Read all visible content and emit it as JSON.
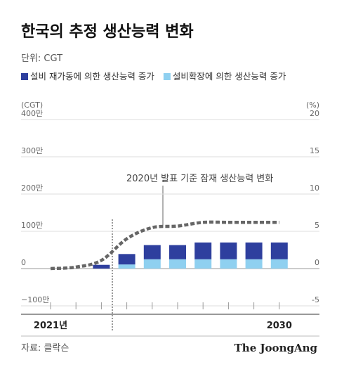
{
  "chart_data": {
    "type": "bar",
    "title": "한국의 추정 생산능력 변화",
    "subtitle": "단위: CGT",
    "y_label": "(CGT)",
    "y2_label": "(%)",
    "annotation": "2020년 발표 기준 잠재 생산능력 변화",
    "source": "자료: 클락슨",
    "credit": "The JoongAng",
    "categories": [
      "2021년",
      null,
      null,
      null,
      null,
      null,
      null,
      null,
      null,
      "2030"
    ],
    "series": [
      {
        "name": "설비 재가동에 의한 생산능력 증가",
        "color": "#2e3f9e",
        "values": [
          null,
          null,
          100000,
          280000,
          380000,
          380000,
          450000,
          450000,
          450000,
          450000
        ]
      },
      {
        "name": "설비확장에 의한 생산능력 증가",
        "color": "#8fd0f0",
        "values": [
          null,
          null,
          null,
          110000,
          250000,
          250000,
          250000,
          250000,
          250000,
          250000
        ]
      },
      {
        "type": "line",
        "axis": "y2",
        "color": "#666666",
        "values": [
          0,
          0.2,
          1.1,
          4,
          5.5,
          5.7,
          6.2,
          6.2,
          6.2,
          6.2
        ]
      }
    ],
    "ylim": [
      -1000000,
      4000000
    ],
    "yticks": [
      {
        "value": -1000000,
        "label": "−100만"
      },
      0,
      {
        "value": 1000000,
        "label": "100만"
      },
      {
        "value": 2000000,
        "label": "200만"
      },
      {
        "value": 3000000,
        "label": "300만"
      },
      {
        "value": 4000000,
        "label": "400만"
      }
    ],
    "y2lim": [
      -5,
      20
    ],
    "y2ticks": [
      -5,
      0,
      5,
      10,
      15,
      20
    ],
    "grid": true
  }
}
